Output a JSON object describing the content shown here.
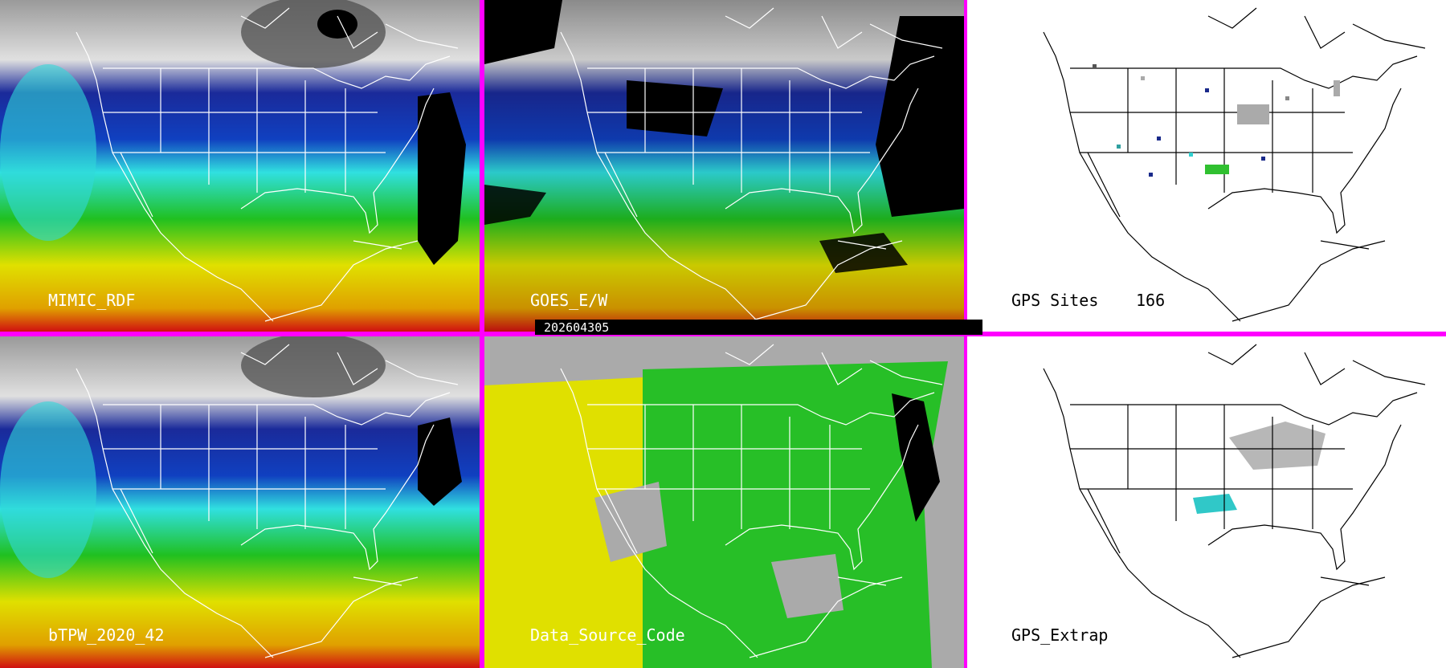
{
  "panels": [
    {
      "label": "MIMIC_RDF"
    },
    {
      "label": "GOES_E/W"
    },
    {
      "label": "GPS Sites",
      "count": "166"
    },
    {
      "label": "bTPW_2020_42"
    },
    {
      "label": "Data_Source_Code"
    },
    {
      "label": "GPS_Extrap"
    }
  ],
  "timestamp": "202604305"
}
